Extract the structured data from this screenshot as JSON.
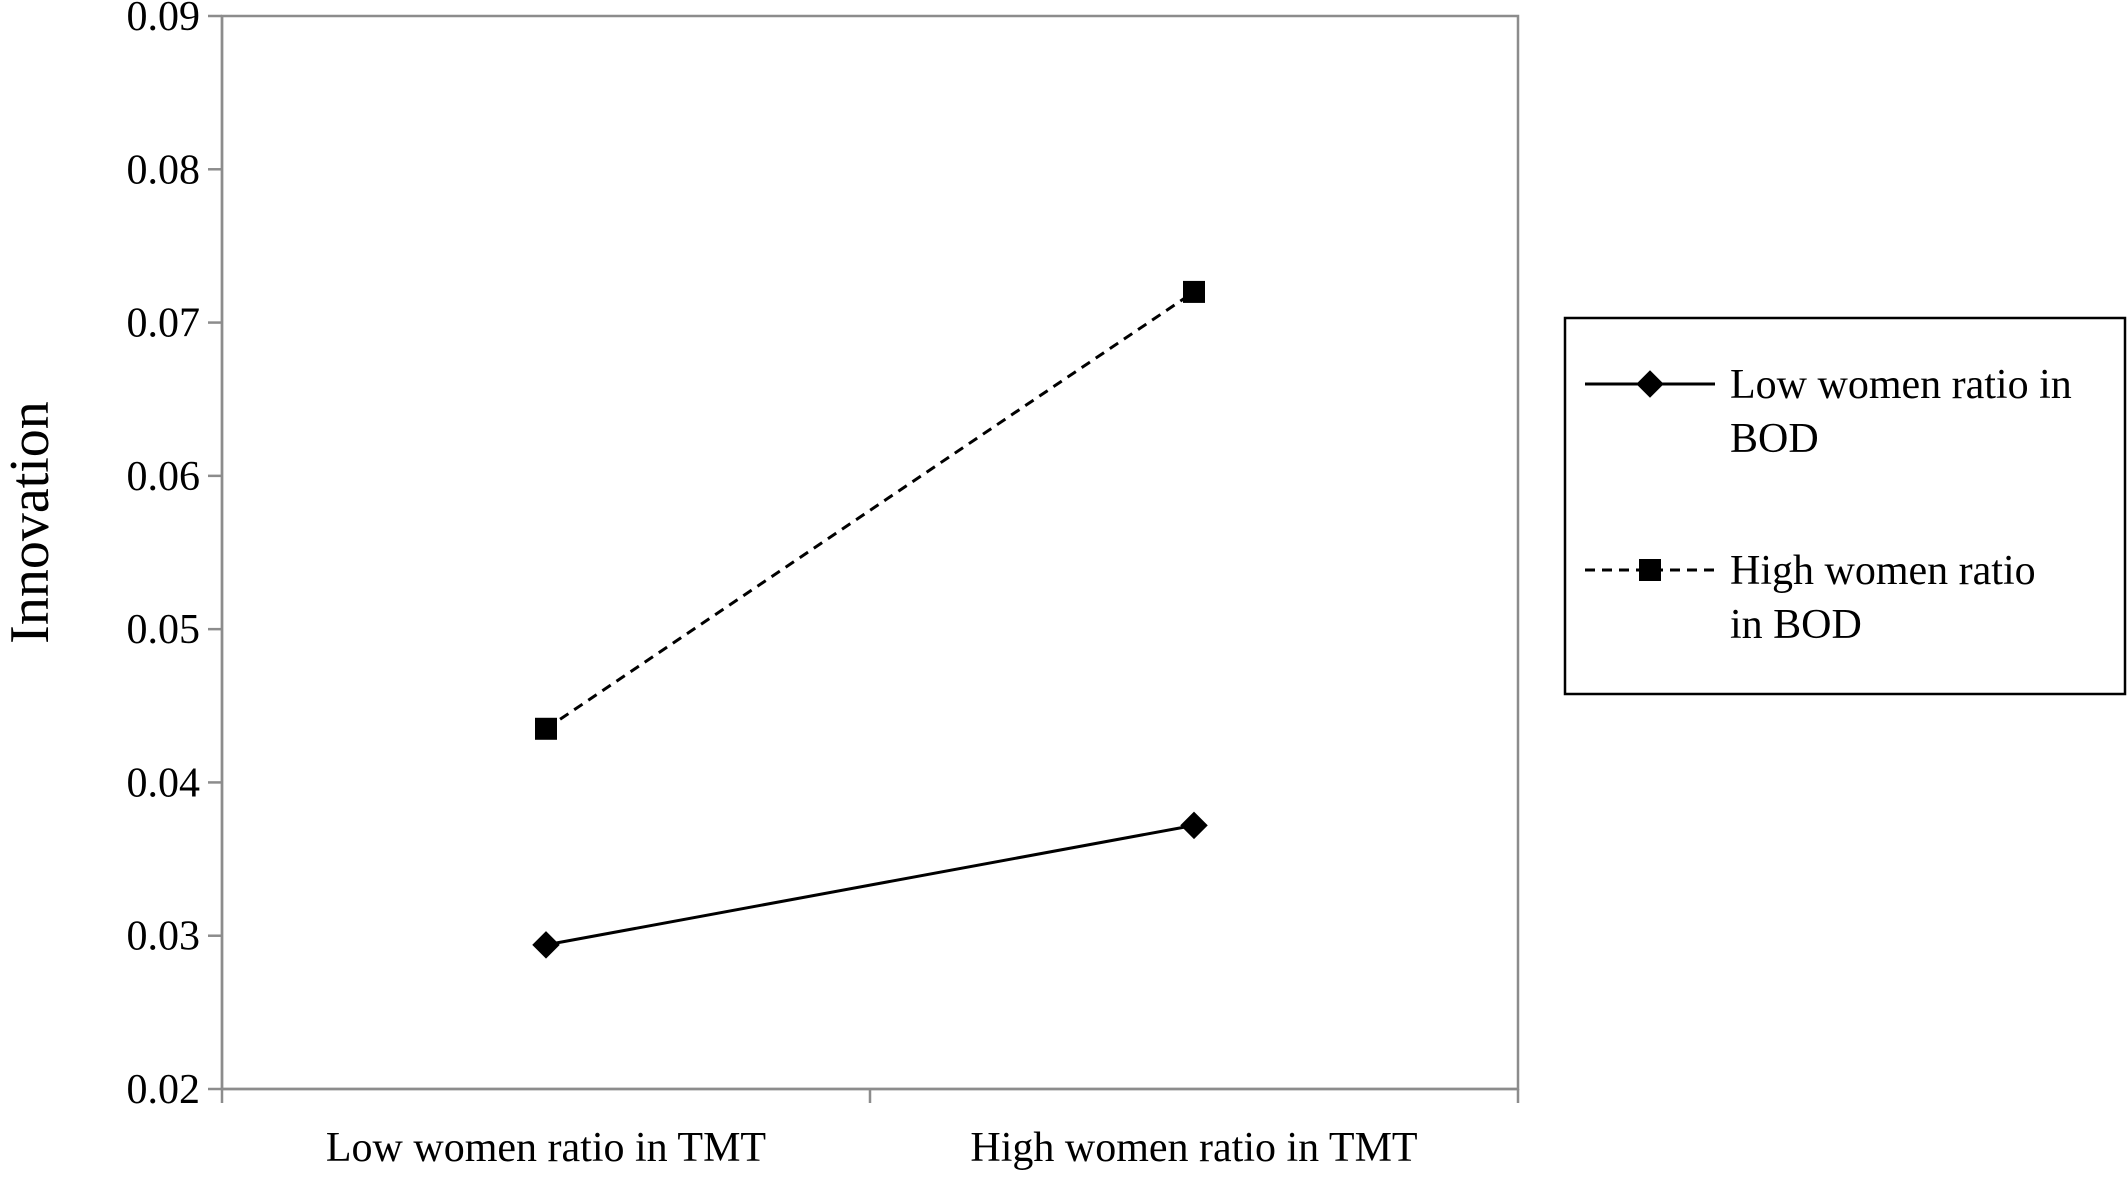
{
  "chart_data": {
    "type": "line",
    "title": "",
    "xlabel": "",
    "ylabel": "Innovation",
    "categories": [
      "Low women ratio in TMT",
      "High women ratio in TMT"
    ],
    "ylim": [
      0.02,
      0.09
    ],
    "yticks": [
      "0.02",
      "0.03",
      "0.04",
      "0.05",
      "0.06",
      "0.07",
      "0.08",
      "0.09"
    ],
    "ytick_values": [
      0.02,
      0.03,
      0.04,
      0.05,
      0.06,
      0.07,
      0.08,
      0.09
    ],
    "grid": false,
    "legend_position": "right",
    "series": [
      {
        "name": "Low women ratio in BOD",
        "legend_lines": [
          "Low women ratio in",
          "BOD"
        ],
        "values": [
          0.0294,
          0.0372
        ],
        "line_style": "solid",
        "marker": "diamond",
        "color": "#000000"
      },
      {
        "name": "High women ratio in BOD",
        "legend_lines": [
          "High women ratio",
          "in BOD"
        ],
        "values": [
          0.0435,
          0.072
        ],
        "line_style": "dashed",
        "marker": "square",
        "color": "#000000"
      }
    ]
  }
}
